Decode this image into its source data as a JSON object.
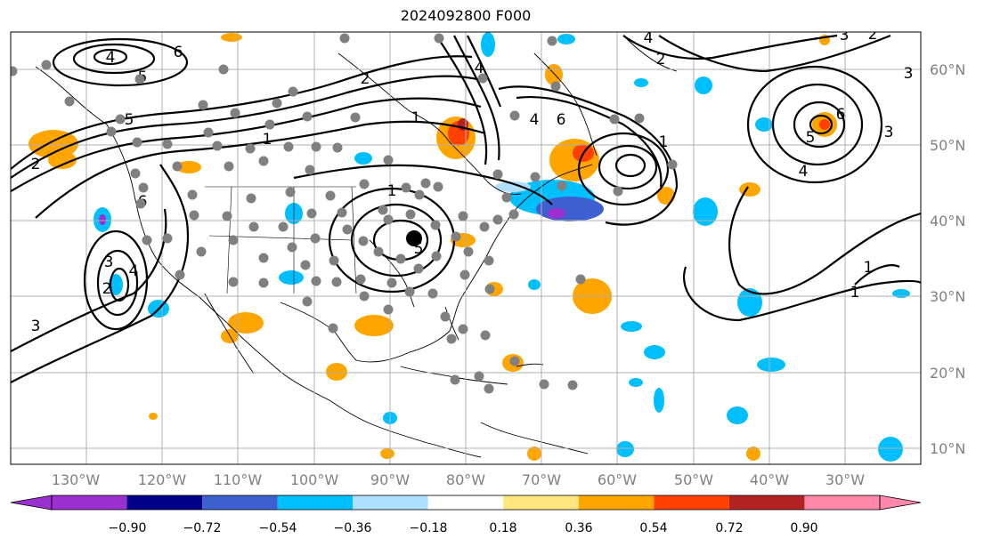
{
  "title": "2024092800 F000",
  "longitude_labels": [
    "130°W",
    "120°W",
    "110°W",
    "100°W",
    "90°W",
    "80°W",
    "70°W",
    "60°W",
    "50°W",
    "40°W",
    "30°W"
  ],
  "latitude_labels": [
    "60°N",
    "50°N",
    "40°N",
    "30°N",
    "20°N",
    "10°N"
  ],
  "colorbar": {
    "tick_labels": [
      "−0.90",
      "−0.72",
      "−0.54",
      "−0.36",
      "−0.18",
      "0.18",
      "0.36",
      "0.54",
      "0.72",
      "0.90"
    ],
    "colors": [
      "#9b30d0",
      "#000088",
      "#3d5fcf",
      "#00bfff",
      "#afe0ff",
      "#ffffff",
      "#ffe680",
      "#ffa500",
      "#ff4000",
      "#b22222",
      "#ff88aa"
    ]
  },
  "contour_labels": [
    "4",
    "5",
    "6",
    "2",
    "3",
    "4",
    "5",
    "6",
    "2",
    "3",
    "1",
    "2",
    "4",
    "5",
    "6",
    "1",
    "1",
    "2",
    "3",
    "4",
    "1",
    "1",
    "2",
    "3",
    "4",
    "5",
    "6",
    "3",
    "4",
    "1"
  ],
  "station_marker": "current position marker"
}
